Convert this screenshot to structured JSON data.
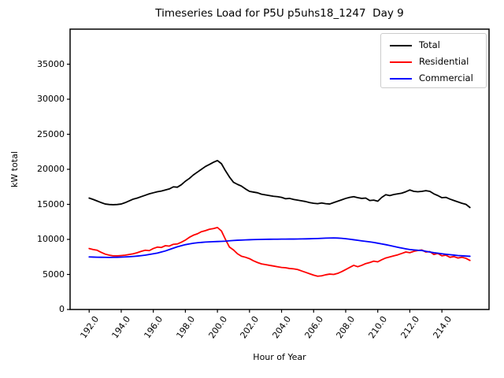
{
  "chart_data": {
    "type": "line",
    "title": "Timeseries Load for P5U p5uhs18_1247  Day 9",
    "xlabel": "Hour of Year",
    "ylabel": "kW total",
    "xlim": [
      190.81,
      216.94
    ],
    "ylim": [
      0,
      40000
    ],
    "grid": false,
    "legend_position": "upper right",
    "y_ticks": [
      0,
      5000,
      10000,
      15000,
      20000,
      25000,
      30000,
      35000
    ],
    "x_ticks": [
      192,
      194,
      196,
      198,
      200,
      202,
      204,
      206,
      208,
      210,
      212,
      214
    ],
    "x_tick_labels": [
      "192.0",
      "194.0",
      "196.0",
      "198.0",
      "200.0",
      "202.0",
      "204.0",
      "206.0",
      "208.0",
      "210.0",
      "212.0",
      "214.0"
    ],
    "x": [
      192.0,
      192.25,
      192.5,
      192.75,
      193.0,
      193.25,
      193.5,
      193.75,
      194.0,
      194.25,
      194.5,
      194.75,
      195.0,
      195.25,
      195.5,
      195.75,
      196.0,
      196.25,
      196.5,
      196.75,
      197.0,
      197.25,
      197.5,
      197.75,
      198.0,
      198.25,
      198.5,
      198.75,
      199.0,
      199.25,
      199.5,
      199.75,
      200.0,
      200.25,
      200.5,
      200.75,
      201.0,
      201.25,
      201.5,
      201.75,
      202.0,
      202.25,
      202.5,
      202.75,
      203.0,
      203.25,
      203.5,
      203.75,
      204.0,
      204.25,
      204.5,
      204.75,
      205.0,
      205.25,
      205.5,
      205.75,
      206.0,
      206.25,
      206.5,
      206.75,
      207.0,
      207.25,
      207.5,
      207.75,
      208.0,
      208.25,
      208.5,
      208.75,
      209.0,
      209.25,
      209.5,
      209.75,
      210.0,
      210.25,
      210.5,
      210.75,
      211.0,
      211.25,
      211.5,
      211.75,
      212.0,
      212.25,
      212.5,
      212.75,
      213.0,
      213.25,
      213.5,
      213.75,
      214.0,
      214.25,
      214.5,
      214.75,
      215.0,
      215.25,
      215.5,
      215.75
    ],
    "series": [
      {
        "name": "Total",
        "color": "#000000",
        "values": [
          15900,
          15700,
          15480,
          15250,
          15050,
          14980,
          14950,
          14980,
          15050,
          15250,
          15500,
          15750,
          15900,
          16100,
          16300,
          16500,
          16650,
          16800,
          16900,
          17050,
          17200,
          17500,
          17450,
          17800,
          18300,
          18700,
          19200,
          19600,
          20000,
          20400,
          20700,
          21000,
          21250,
          20800,
          19800,
          18900,
          18150,
          17850,
          17600,
          17200,
          16850,
          16750,
          16650,
          16450,
          16350,
          16250,
          16150,
          16100,
          16000,
          15800,
          15850,
          15700,
          15600,
          15500,
          15400,
          15250,
          15150,
          15100,
          15200,
          15100,
          15050,
          15250,
          15450,
          15650,
          15850,
          16000,
          16100,
          15950,
          15850,
          15900,
          15550,
          15600,
          15450,
          16000,
          16380,
          16250,
          16400,
          16500,
          16600,
          16800,
          17050,
          16850,
          16800,
          16850,
          16950,
          16850,
          16500,
          16250,
          15950,
          16000,
          15750,
          15550,
          15350,
          15150,
          15000,
          14550
        ]
      },
      {
        "name": "Residential",
        "color": "#ff0000",
        "values": [
          8700,
          8550,
          8450,
          8150,
          7900,
          7750,
          7650,
          7650,
          7700,
          7750,
          7850,
          7950,
          8100,
          8300,
          8450,
          8400,
          8700,
          8900,
          8850,
          9100,
          9050,
          9300,
          9350,
          9600,
          9900,
          10300,
          10600,
          10800,
          11100,
          11250,
          11450,
          11550,
          11700,
          11200,
          10000,
          8900,
          8500,
          7950,
          7600,
          7450,
          7250,
          6950,
          6700,
          6500,
          6400,
          6300,
          6200,
          6100,
          6000,
          5950,
          5850,
          5800,
          5700,
          5500,
          5300,
          5100,
          4900,
          4750,
          4800,
          4950,
          5050,
          5000,
          5150,
          5400,
          5700,
          6000,
          6300,
          6100,
          6300,
          6550,
          6700,
          6900,
          6800,
          7100,
          7350,
          7500,
          7650,
          7800,
          8000,
          8200,
          8100,
          8300,
          8420,
          8490,
          8200,
          8250,
          7850,
          8000,
          7650,
          7750,
          7450,
          7550,
          7350,
          7450,
          7300,
          7000
        ]
      },
      {
        "name": "Commercial",
        "color": "#0000ff",
        "values": [
          7500,
          7480,
          7460,
          7450,
          7440,
          7430,
          7440,
          7450,
          7470,
          7500,
          7530,
          7570,
          7620,
          7680,
          7750,
          7850,
          7950,
          8050,
          8200,
          8350,
          8550,
          8750,
          8950,
          9100,
          9250,
          9350,
          9450,
          9520,
          9570,
          9620,
          9650,
          9680,
          9700,
          9720,
          9750,
          9800,
          9850,
          9880,
          9900,
          9930,
          9950,
          9970,
          9990,
          10000,
          10010,
          10020,
          10030,
          10030,
          10040,
          10040,
          10050,
          10050,
          10060,
          10070,
          10080,
          10090,
          10110,
          10130,
          10150,
          10180,
          10200,
          10210,
          10190,
          10150,
          10100,
          10030,
          9950,
          9870,
          9790,
          9720,
          9650,
          9560,
          9460,
          9360,
          9250,
          9130,
          9000,
          8880,
          8760,
          8650,
          8550,
          8500,
          8450,
          8420,
          8300,
          8200,
          8100,
          8030,
          7950,
          7880,
          7820,
          7760,
          7700,
          7660,
          7620,
          7590
        ]
      }
    ]
  }
}
